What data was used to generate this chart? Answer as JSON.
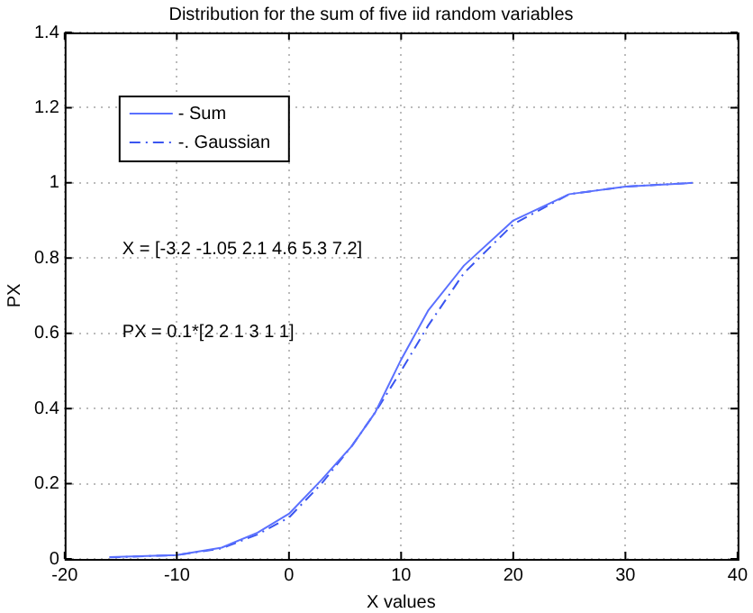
{
  "chart_data": {
    "type": "line",
    "title": "Distribution for the sum of five iid random variables",
    "xlabel": "X values",
    "ylabel": "PX",
    "xlim": [
      -20,
      40
    ],
    "xticks": [
      -20,
      -10,
      0,
      10,
      20,
      30,
      40
    ],
    "ylim": [
      0,
      1.4
    ],
    "yticks": [
      0,
      0.2,
      0.4,
      0.6,
      0.8,
      1,
      1.2,
      1.4
    ],
    "grid": true,
    "legend": "top left",
    "marker": "none",
    "annotations": [
      "X = [-3.2 -1.05 2.1 4.6 5.3 7.2]",
      "PX = 0.1*[2 2 1 3 1 1]"
    ],
    "series": [
      {
        "name": "- Sum",
        "color": "#5a70ff",
        "line_style": "solid",
        "x": [
          -16,
          -10,
          -6,
          -2.8,
          0,
          2.9,
          5.6,
          7.7,
          10,
          12.4,
          15.6,
          20,
          25,
          30,
          36
        ],
        "values": [
          0.005,
          0.01,
          0.03,
          0.07,
          0.12,
          0.21,
          0.3,
          0.39,
          0.53,
          0.66,
          0.78,
          0.9,
          0.97,
          0.99,
          1
        ]
      },
      {
        "name": "-. Gaussian",
        "color": "#3a55f0",
        "line_style": "dashed",
        "x": [
          -16,
          -10,
          -6,
          -2.8,
          0,
          2.9,
          5.6,
          7.7,
          10,
          12.4,
          15.6,
          20,
          25,
          30,
          36
        ],
        "values": [
          0.004,
          0.01,
          0.028,
          0.065,
          0.11,
          0.2,
          0.3,
          0.39,
          0.5,
          0.62,
          0.76,
          0.89,
          0.97,
          0.99,
          1
        ]
      }
    ]
  }
}
